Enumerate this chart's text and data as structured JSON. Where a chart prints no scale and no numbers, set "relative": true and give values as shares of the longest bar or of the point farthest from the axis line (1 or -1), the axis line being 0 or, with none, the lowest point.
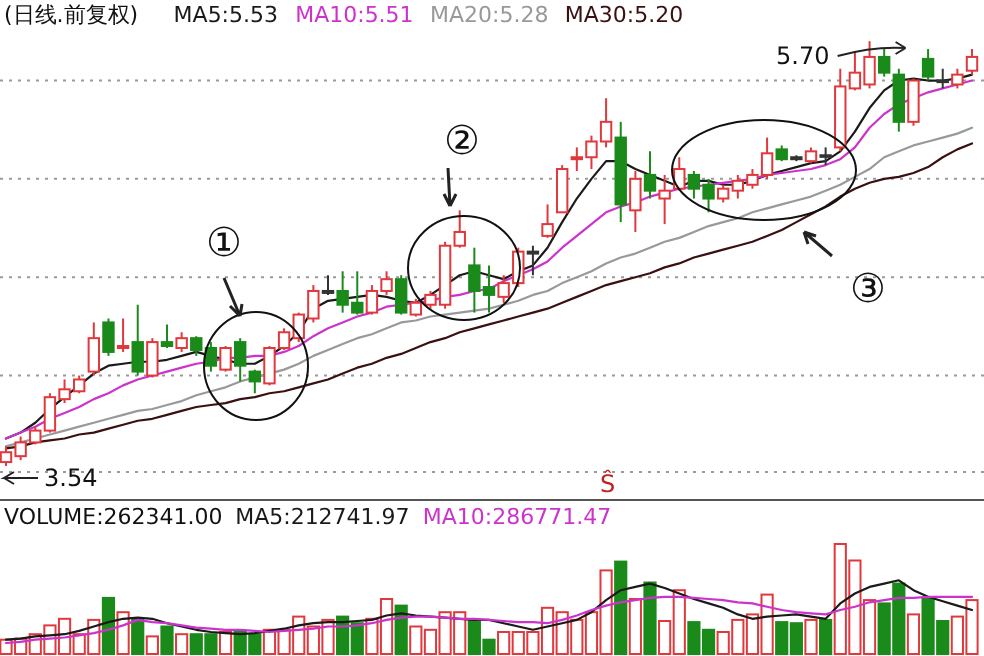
{
  "chart_data": [
    {
      "type": "candlestick",
      "title": "(日线.前复权)",
      "legend": "top left",
      "grid": "y",
      "categories": [
        null,
        null,
        null,
        null,
        null,
        null,
        null,
        null,
        null,
        null,
        null,
        null,
        null,
        null,
        null,
        null,
        null,
        null,
        null,
        null,
        null,
        null,
        null,
        null,
        null,
        null,
        null,
        null,
        null,
        null,
        null,
        null,
        null,
        null,
        null,
        null,
        null,
        null,
        null,
        null,
        null,
        null,
        null,
        null,
        null,
        null,
        null,
        null,
        null,
        null,
        null,
        null,
        null,
        null,
        null,
        null,
        null,
        null,
        null,
        null,
        null,
        null,
        null,
        null,
        null,
        null,
        null
      ],
      "yticks": [
        {
          "value": 4.0,
          "label": null
        },
        {
          "value": 4.5,
          "label": null
        },
        {
          "value": 5.0,
          "label": null
        },
        {
          "value": 5.5,
          "label": null
        }
      ],
      "ohlc": [
        [
          3.56,
          3.64,
          3.54,
          3.61
        ],
        [
          3.59,
          3.69,
          3.57,
          3.66
        ],
        [
          3.66,
          3.74,
          3.65,
          3.72
        ],
        [
          3.72,
          3.91,
          3.71,
          3.89
        ],
        [
          3.88,
          3.98,
          3.86,
          3.93
        ],
        [
          3.92,
          4.0,
          3.91,
          3.98
        ],
        [
          4.02,
          4.27,
          4.0,
          4.19
        ],
        [
          4.27,
          4.29,
          4.1,
          4.12
        ],
        [
          4.14,
          4.29,
          4.12,
          4.15
        ],
        [
          4.17,
          4.36,
          4.0,
          4.02
        ],
        [
          4.0,
          4.19,
          3.99,
          4.17
        ],
        [
          4.17,
          4.26,
          4.14,
          4.15
        ],
        [
          4.14,
          4.22,
          4.12,
          4.19
        ],
        [
          4.19,
          4.2,
          4.1,
          4.13
        ],
        [
          4.14,
          4.17,
          4.02,
          4.05
        ],
        [
          4.03,
          4.15,
          4.02,
          4.14
        ],
        [
          4.17,
          4.19,
          3.97,
          4.05
        ],
        [
          4.02,
          4.03,
          3.91,
          3.97
        ],
        [
          3.96,
          4.15,
          3.95,
          4.14
        ],
        [
          4.14,
          4.24,
          4.13,
          4.22
        ],
        [
          4.19,
          4.32,
          4.17,
          4.31
        ],
        [
          4.29,
          4.46,
          4.27,
          4.43
        ],
        [
          4.42,
          4.51,
          4.41,
          4.43
        ],
        [
          4.43,
          4.53,
          4.32,
          4.36
        ],
        [
          4.37,
          4.53,
          4.31,
          4.32
        ],
        [
          4.32,
          4.46,
          4.31,
          4.43
        ],
        [
          4.43,
          4.53,
          4.41,
          4.49
        ],
        [
          4.49,
          4.51,
          4.31,
          4.32
        ],
        [
          4.31,
          4.39,
          4.3,
          4.37
        ],
        [
          4.36,
          4.43,
          4.34,
          4.41
        ],
        [
          4.36,
          4.68,
          4.34,
          4.66
        ],
        [
          4.66,
          4.84,
          4.65,
          4.73
        ],
        [
          4.56,
          4.65,
          4.32,
          4.43
        ],
        [
          4.45,
          4.56,
          4.32,
          4.41
        ],
        [
          4.4,
          4.51,
          4.37,
          4.47
        ],
        [
          4.47,
          4.65,
          4.45,
          4.63
        ],
        [
          4.62,
          4.66,
          4.51,
          4.63
        ],
        [
          4.71,
          4.87,
          4.7,
          4.77
        ],
        [
          4.83,
          5.07,
          4.83,
          5.05
        ],
        [
          5.1,
          5.16,
          5.04,
          5.11
        ],
        [
          5.11,
          5.22,
          5.05,
          5.19
        ],
        [
          5.19,
          5.41,
          5.16,
          5.29
        ],
        [
          5.21,
          5.29,
          4.78,
          4.87
        ],
        [
          4.84,
          5.04,
          4.73,
          5.0
        ],
        [
          5.02,
          5.14,
          4.9,
          4.94
        ],
        [
          4.9,
          5.02,
          4.77,
          4.94
        ],
        [
          4.95,
          5.11,
          4.94,
          5.05
        ],
        [
          5.02,
          5.04,
          4.9,
          4.95
        ],
        [
          4.97,
          5.0,
          4.83,
          4.9
        ],
        [
          4.9,
          4.97,
          4.88,
          4.95
        ],
        [
          4.94,
          5.02,
          4.9,
          4.99
        ],
        [
          4.97,
          5.05,
          4.95,
          5.02
        ],
        [
          5.02,
          5.21,
          5.0,
          5.13
        ],
        [
          5.15,
          5.17,
          5.09,
          5.1
        ],
        [
          5.1,
          5.12,
          5.09,
          5.11
        ],
        [
          5.09,
          5.16,
          5.08,
          5.14
        ],
        [
          5.12,
          5.16,
          5.07,
          5.12
        ],
        [
          5.16,
          5.56,
          5.14,
          5.47
        ],
        [
          5.46,
          5.65,
          5.45,
          5.54
        ],
        [
          5.48,
          5.7,
          5.46,
          5.62
        ],
        [
          5.62,
          5.66,
          5.52,
          5.54
        ],
        [
          5.53,
          5.56,
          5.24,
          5.29
        ],
        [
          5.29,
          5.51,
          5.27,
          5.5
        ],
        [
          5.61,
          5.66,
          5.5,
          5.52
        ],
        [
          5.5,
          5.56,
          5.46,
          5.5
        ],
        [
          5.48,
          5.56,
          5.46,
          5.53
        ],
        [
          5.55,
          5.66,
          5.53,
          5.62
        ]
      ],
      "colors": [
        "#e0383c",
        "#e0383c",
        "#e0383c",
        "#e0383c",
        "#e0383c",
        "#e0383c",
        "#e0383c",
        "#1a8a1a",
        "#e0383c",
        "#1a8a1a",
        "#e0383c",
        "#1a8a1a",
        "#e0383c",
        "#1a8a1a",
        "#1a8a1a",
        "#e0383c",
        "#1a8a1a",
        "#1a8a1a",
        "#e0383c",
        "#e0383c",
        "#e0383c",
        "#e0383c",
        "#333333",
        "#1a8a1a",
        "#1a8a1a",
        "#e0383c",
        "#e0383c",
        "#1a8a1a",
        "#e0383c",
        "#e0383c",
        "#e0383c",
        "#e0383c",
        "#1a8a1a",
        "#1a8a1a",
        "#e0383c",
        "#e0383c",
        "#333333",
        "#e0383c",
        "#e0383c",
        "#e0383c",
        "#e0383c",
        "#e0383c",
        "#1a8a1a",
        "#e0383c",
        "#1a8a1a",
        "#e0383c",
        "#e0383c",
        "#1a8a1a",
        "#1a8a1a",
        "#e0383c",
        "#e0383c",
        "#e0383c",
        "#e0383c",
        "#1a8a1a",
        "#333333",
        "#e0383c",
        "#333333",
        "#e0383c",
        "#e0383c",
        "#e0383c",
        "#1a8a1a",
        "#1a8a1a",
        "#e0383c",
        "#1a8a1a",
        "#333333",
        "#e0383c",
        "#e0383c"
      ],
      "series": [
        {
          "name": "MA5:5.53",
          "type": "line",
          "color": "#1a1a1a",
          "values": [
            3.68,
            3.71,
            3.76,
            3.83,
            3.89,
            3.95,
            4.01,
            4.05,
            4.06,
            4.07,
            4.07,
            4.08,
            4.1,
            4.12,
            4.1,
            4.08,
            4.06,
            4.06,
            4.1,
            4.15,
            4.22,
            4.34,
            4.38,
            4.39,
            4.4,
            4.41,
            4.4,
            4.38,
            4.37,
            4.41,
            4.46,
            4.51,
            4.53,
            4.51,
            4.49,
            4.53,
            4.56,
            4.65,
            4.78,
            4.9,
            5.0,
            5.09,
            5.09,
            5.05,
            5.02,
            4.99,
            4.96,
            4.99,
            4.99,
            4.97,
            4.97,
            4.99,
            5.02,
            5.04,
            5.06,
            5.08,
            5.09,
            5.14,
            5.24,
            5.36,
            5.45,
            5.5,
            5.51,
            5.5,
            5.5,
            5.51,
            5.53
          ]
        },
        {
          "name": "MA10:5.51",
          "type": "line",
          "color": "#cc33cc",
          "values": [
            3.68,
            3.71,
            3.74,
            3.78,
            3.81,
            3.84,
            3.88,
            3.91,
            3.95,
            3.98,
            4.0,
            4.02,
            4.04,
            4.06,
            4.07,
            4.09,
            4.09,
            4.1,
            4.1,
            4.12,
            4.15,
            4.2,
            4.24,
            4.27,
            4.3,
            4.32,
            4.35,
            4.36,
            4.37,
            4.38,
            4.4,
            4.41,
            4.43,
            4.44,
            4.48,
            4.51,
            4.54,
            4.58,
            4.65,
            4.71,
            4.77,
            4.83,
            4.86,
            4.88,
            4.91,
            4.93,
            4.95,
            4.96,
            4.97,
            4.98,
            4.99,
            5.0,
            5.02,
            5.03,
            5.04,
            5.05,
            5.07,
            5.1,
            5.16,
            5.26,
            5.33,
            5.38,
            5.41,
            5.44,
            5.46,
            5.48,
            5.5
          ]
        },
        {
          "name": "MA20:5.28",
          "type": "line",
          "color": "#999999",
          "values": [
            3.64,
            3.66,
            3.68,
            3.7,
            3.72,
            3.74,
            3.76,
            3.78,
            3.8,
            3.82,
            3.83,
            3.85,
            3.87,
            3.9,
            3.92,
            3.94,
            3.97,
            3.99,
            4.01,
            4.03,
            4.06,
            4.1,
            4.13,
            4.16,
            4.19,
            4.21,
            4.24,
            4.27,
            4.28,
            4.3,
            4.31,
            4.32,
            4.33,
            4.34,
            4.36,
            4.38,
            4.41,
            4.43,
            4.47,
            4.5,
            4.53,
            4.57,
            4.6,
            4.62,
            4.65,
            4.68,
            4.7,
            4.73,
            4.76,
            4.78,
            4.8,
            4.83,
            4.85,
            4.87,
            4.89,
            4.91,
            4.94,
            4.97,
            5.01,
            5.05,
            5.11,
            5.14,
            5.17,
            5.19,
            5.21,
            5.23,
            5.26
          ]
        },
        {
          "name": "MA30:5.20",
          "type": "line",
          "color": "#3a1010",
          "values": [
            3.63,
            3.64,
            3.66,
            3.67,
            3.68,
            3.7,
            3.71,
            3.73,
            3.75,
            3.77,
            3.78,
            3.8,
            3.82,
            3.84,
            3.85,
            3.86,
            3.88,
            3.89,
            3.91,
            3.92,
            3.94,
            3.96,
            3.98,
            4.01,
            4.04,
            4.06,
            4.09,
            4.11,
            4.14,
            4.17,
            4.19,
            4.22,
            4.24,
            4.26,
            4.28,
            4.3,
            4.32,
            4.34,
            4.37,
            4.4,
            4.43,
            4.46,
            4.48,
            4.5,
            4.52,
            4.55,
            4.57,
            4.6,
            4.62,
            4.64,
            4.66,
            4.68,
            4.71,
            4.74,
            4.78,
            4.82,
            4.86,
            4.91,
            4.95,
            4.98,
            5.0,
            5.01,
            5.03,
            5.06,
            5.11,
            5.15,
            5.18
          ]
        }
      ],
      "annotations": [
        "①",
        "②",
        "③",
        "5.70",
        "3.54",
        "Ŝ"
      ]
    },
    {
      "type": "bar",
      "relative": true,
      "legend": "top left",
      "title": "VOLUME:262341.00",
      "categories": [
        null,
        null,
        null,
        null,
        null,
        null,
        null,
        null,
        null,
        null,
        null,
        null,
        null,
        null,
        null,
        null,
        null,
        null,
        null,
        null,
        null,
        null,
        null,
        null,
        null,
        null,
        null,
        null,
        null,
        null,
        null,
        null,
        null,
        null,
        null,
        null,
        null,
        null,
        null,
        null,
        null,
        null,
        null,
        null,
        null,
        null,
        null,
        null,
        null,
        null,
        null,
        null,
        null,
        null,
        null,
        null,
        null,
        null,
        null,
        null,
        null,
        null,
        null,
        null,
        null,
        null,
        null
      ],
      "series": [
        {
          "type": "bar",
          "colors": [
            "#e0383c",
            "#e0383c",
            "#e0383c",
            "#e0383c",
            "#e0383c",
            "#e0383c",
            "#e0383c",
            "#1a8a1a",
            "#e0383c",
            "#1a8a1a",
            "#e0383c",
            "#1a8a1a",
            "#e0383c",
            "#1a8a1a",
            "#1a8a1a",
            "#e0383c",
            "#1a8a1a",
            "#1a8a1a",
            "#e0383c",
            "#e0383c",
            "#e0383c",
            "#e0383c",
            "#e0383c",
            "#1a8a1a",
            "#1a8a1a",
            "#e0383c",
            "#e0383c",
            "#1a8a1a",
            "#e0383c",
            "#e0383c",
            "#e0383c",
            "#e0383c",
            "#1a8a1a",
            "#1a8a1a",
            "#e0383c",
            "#e0383c",
            "#e0383c",
            "#e0383c",
            "#e0383c",
            "#e0383c",
            "#e0383c",
            "#e0383c",
            "#1a8a1a",
            "#e0383c",
            "#1a8a1a",
            "#e0383c",
            "#e0383c",
            "#1a8a1a",
            "#1a8a1a",
            "#e0383c",
            "#e0383c",
            "#e0383c",
            "#e0383c",
            "#1a8a1a",
            "#1a8a1a",
            "#e0383c",
            "#1a8a1a",
            "#e0383c",
            "#e0383c",
            "#e0383c",
            "#1a8a1a",
            "#1a8a1a",
            "#e0383c",
            "#1a8a1a",
            "#1a8a1a",
            "#e0383c",
            "#e0383c"
          ],
          "values": [
            0.13,
            0.14,
            0.18,
            0.26,
            0.32,
            0.18,
            0.31,
            0.51,
            0.38,
            0.32,
            0.16,
            0.25,
            0.18,
            0.18,
            0.18,
            0.2,
            0.2,
            0.18,
            0.22,
            0.22,
            0.34,
            0.25,
            0.31,
            0.34,
            0.28,
            0.32,
            0.5,
            0.44,
            0.25,
            0.22,
            0.38,
            0.38,
            0.31,
            0.13,
            0.2,
            0.2,
            0.2,
            0.42,
            0.38,
            0.31,
            0.38,
            0.76,
            0.84,
            0.5,
            0.65,
            0.3,
            0.58,
            0.29,
            0.22,
            0.2,
            0.31,
            0.36,
            0.54,
            0.29,
            0.28,
            0.31,
            0.31,
            1,
            0.85,
            0.49,
            0.46,
            0.64,
            0.36,
            0.5,
            0.3,
            0.34,
            0.49
          ]
        },
        {
          "name": "MA5:212741.97",
          "type": "line",
          "color": "#1a1a1a",
          "values": [
            0.13,
            0.14,
            0.16,
            0.17,
            0.18,
            0.21,
            0.25,
            0.29,
            0.32,
            0.33,
            0.32,
            0.28,
            0.25,
            0.22,
            0.2,
            0.19,
            0.18,
            0.19,
            0.21,
            0.23,
            0.26,
            0.28,
            0.29,
            0.29,
            0.3,
            0.31,
            0.35,
            0.37,
            0.35,
            0.34,
            0.33,
            0.32,
            0.31,
            0.31,
            0.28,
            0.25,
            0.22,
            0.25,
            0.28,
            0.31,
            0.38,
            0.49,
            0.58,
            0.61,
            0.64,
            0.6,
            0.55,
            0.5,
            0.46,
            0.42,
            0.36,
            0.32,
            0.34,
            0.35,
            0.36,
            0.34,
            0.32,
            0.46,
            0.55,
            0.61,
            0.64,
            0.67,
            0.58,
            0.52,
            0.48,
            0.44,
            0.4
          ]
        },
        {
          "name": "MA10:286771.47",
          "type": "line",
          "color": "#cc33cc",
          "values": [
            0.1,
            0.11,
            0.13,
            0.14,
            0.15,
            0.17,
            0.19,
            0.22,
            0.26,
            0.31,
            0.29,
            0.28,
            0.26,
            0.24,
            0.23,
            0.22,
            0.22,
            0.21,
            0.2,
            0.21,
            0.22,
            0.23,
            0.25,
            0.25,
            0.26,
            0.28,
            0.31,
            0.33,
            0.34,
            0.34,
            0.33,
            0.32,
            0.32,
            0.31,
            0.3,
            0.29,
            0.29,
            0.28,
            0.31,
            0.35,
            0.4,
            0.44,
            0.47,
            0.49,
            0.51,
            0.52,
            0.52,
            0.51,
            0.5,
            0.49,
            0.47,
            0.46,
            0.43,
            0.4,
            0.38,
            0.37,
            0.36,
            0.4,
            0.43,
            0.47,
            0.49,
            0.51,
            0.51,
            0.52,
            0.52,
            0.52,
            0.52
          ]
        }
      ]
    }
  ]
}
